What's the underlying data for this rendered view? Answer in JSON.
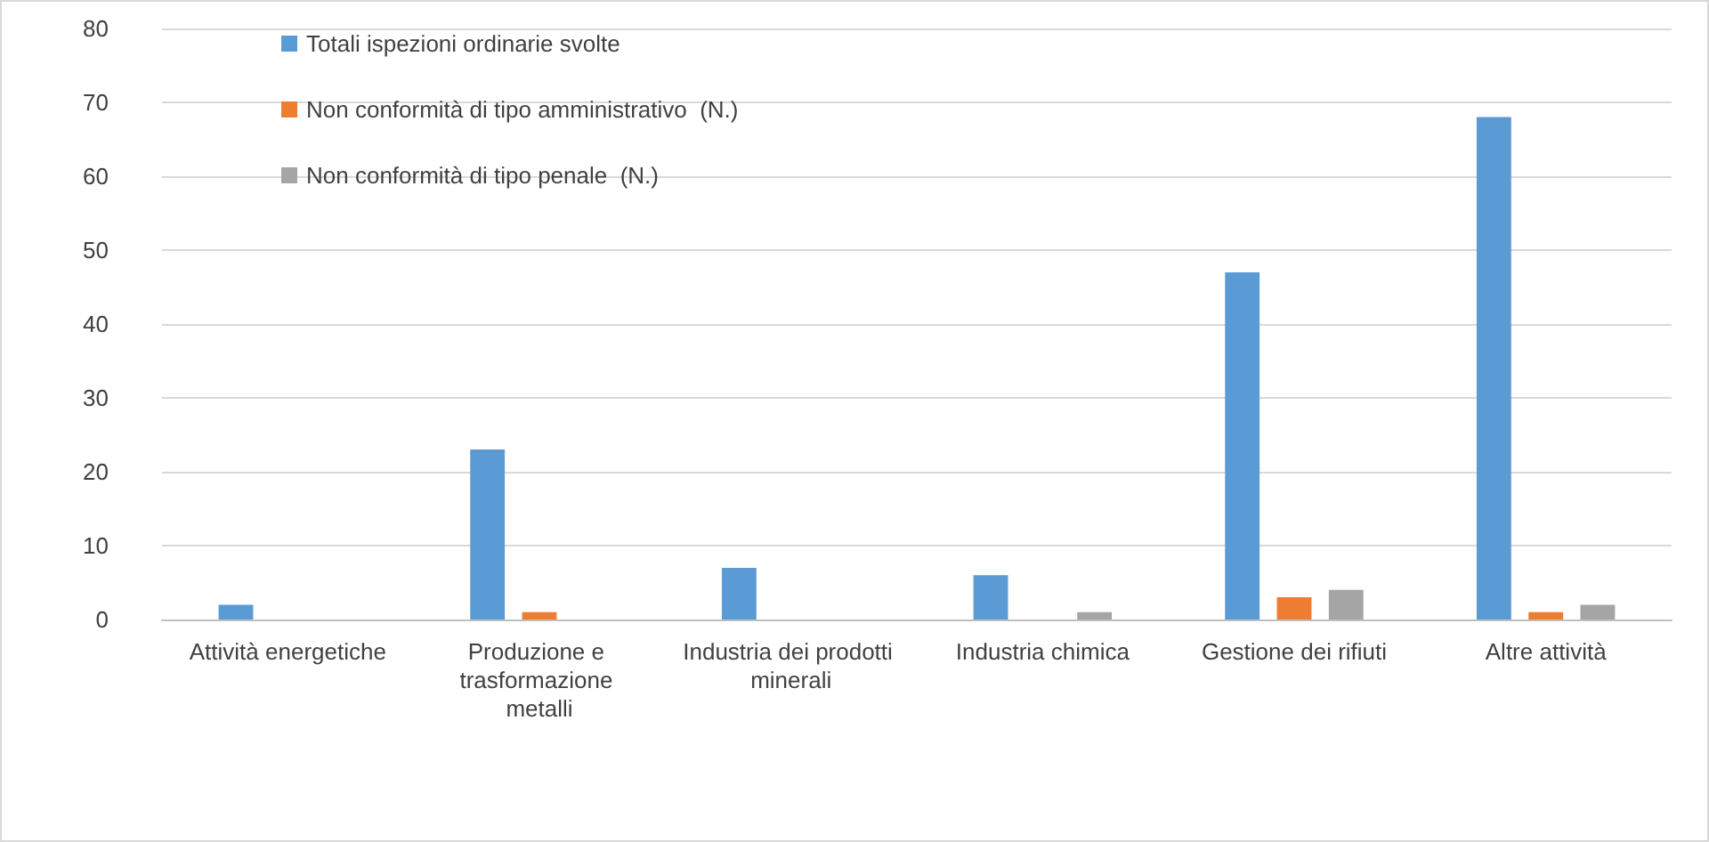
{
  "chart_data": {
    "type": "bar",
    "categories": [
      "Attività energetiche",
      "Produzione e trasformazione metalli",
      "Industria dei prodotti minerali",
      "Industria chimica",
      "Gestione dei rifiuti",
      "Altre attività"
    ],
    "series": [
      {
        "name": "Totali ispezioni ordinarie svolte",
        "color": "#5b9bd5",
        "values": [
          2,
          23,
          7,
          6,
          47,
          68
        ]
      },
      {
        "name": "Non conformità di tipo amministrativo  (N.)",
        "color": "#ed7d31",
        "values": [
          0,
          1,
          0,
          0,
          3,
          1
        ]
      },
      {
        "name": "Non conformità di tipo penale  (N.)",
        "color": "#a5a5a5",
        "values": [
          0,
          0,
          0,
          1,
          4,
          2
        ]
      }
    ],
    "ylim": [
      0,
      80
    ],
    "yticks": [
      0,
      10,
      20,
      30,
      40,
      50,
      60,
      70,
      80
    ],
    "grid": "y",
    "legend": "top left"
  }
}
